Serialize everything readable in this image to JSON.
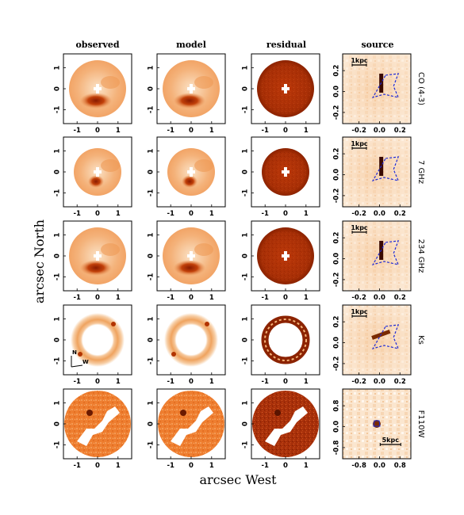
{
  "figure": {
    "column_titles": [
      "observed",
      "model",
      "residual",
      "source"
    ],
    "xlabel": "arcsec West",
    "ylabel": "arcsec North",
    "image_ticks": [
      "-1",
      "0",
      "1"
    ],
    "rows": [
      {
        "label": "CO (4-3)",
        "src_xticks": [
          "-0.2",
          "0.0",
          "0.2"
        ],
        "src_yticks": [
          "0.2",
          "0.0",
          "-0.2"
        ],
        "scale": "1kpc"
      },
      {
        "label": "7 GHz",
        "src_xticks": [
          "-0.2",
          "0.0",
          "0.2"
        ],
        "src_yticks": [
          "0.2",
          "0.0",
          "-0.2"
        ],
        "scale": "1kpc"
      },
      {
        "label": "234 GHz",
        "src_xticks": [
          "-0.2",
          "0.0",
          "0.2"
        ],
        "src_yticks": [
          "0.2",
          "0.0",
          "-0.2"
        ],
        "scale": "1kpc"
      },
      {
        "label": "Ks",
        "src_xticks": [
          "-0.2",
          "0.0",
          "0.2"
        ],
        "src_yticks": [
          "0.2",
          "0.0",
          "-0.2"
        ],
        "scale": "1kpc"
      },
      {
        "label": "F110W",
        "src_xticks": [
          "-0.8",
          "0.0",
          "0.8"
        ],
        "src_yticks": [
          "0.8",
          "0.0",
          "-0.8"
        ],
        "scale": "5kpc"
      }
    ],
    "compass": {
      "north": "N",
      "west": "W"
    }
  }
}
